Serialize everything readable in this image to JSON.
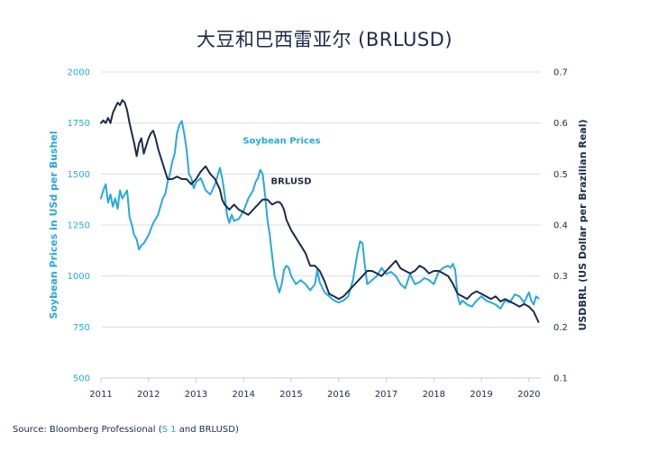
{
  "chart_data": {
    "type": "line",
    "title": "大豆和巴西雷亚尔 (BRLUSD)",
    "left_axis": {
      "label": "Soybean Prices in USd per Bushel",
      "ylim": [
        500,
        2000
      ],
      "ticks": [
        "2000",
        "1750",
        "1500",
        "1250",
        "1000",
        "750",
        "500"
      ],
      "tick_values": [
        2000,
        1750,
        1500,
        1250,
        1000,
        750,
        500
      ]
    },
    "right_axis": {
      "label": "USDBRL (US Dollar per Brazilian Real)",
      "ylim": [
        0.1,
        0.7
      ],
      "ticks": [
        "0.7",
        "0.6",
        "0.5",
        "0.4",
        "0.3",
        "0.2",
        "0.1"
      ],
      "tick_values": [
        0.7,
        0.6,
        0.5,
        0.4,
        0.3,
        0.2,
        0.1
      ]
    },
    "x_axis": {
      "xlim": [
        2011.0,
        2020.25
      ],
      "ticks": [
        "2011",
        "2012",
        "2013",
        "2014",
        "2015",
        "2016",
        "2017",
        "2018",
        "2019",
        "2020"
      ],
      "tick_values": [
        2011,
        2012,
        2013,
        2014,
        2015,
        2016,
        2017,
        2018,
        2019,
        2020
      ]
    },
    "grid": true,
    "series": [
      {
        "name": "Soybean Prices",
        "axis": "left",
        "color": "#2aa7dd",
        "x": [
          2011.0,
          2011.05,
          2011.1,
          2011.15,
          2011.2,
          2011.25,
          2011.3,
          2011.35,
          2011.4,
          2011.45,
          2011.5,
          2011.55,
          2011.6,
          2011.65,
          2011.7,
          2011.75,
          2011.8,
          2011.85,
          2011.9,
          2011.95,
          2012.0,
          2012.1,
          2012.2,
          2012.3,
          2012.35,
          2012.4,
          2012.45,
          2012.5,
          2012.55,
          2012.6,
          2012.65,
          2012.7,
          2012.75,
          2012.8,
          2012.85,
          2012.9,
          2012.95,
          2013.0,
          2013.1,
          2013.2,
          2013.3,
          2013.4,
          2013.5,
          2013.55,
          2013.6,
          2013.65,
          2013.7,
          2013.75,
          2013.8,
          2013.9,
          2014.0,
          2014.1,
          2014.2,
          2014.25,
          2014.3,
          2014.35,
          2014.4,
          2014.45,
          2014.5,
          2014.55,
          2014.6,
          2014.65,
          2014.7,
          2014.75,
          2014.8,
          2014.85,
          2014.9,
          2014.95,
          2015.0,
          2015.1,
          2015.2,
          2015.3,
          2015.4,
          2015.5,
          2015.55,
          2015.6,
          2015.7,
          2015.8,
          2015.9,
          2016.0,
          2016.1,
          2016.2,
          2016.3,
          2016.35,
          2016.4,
          2016.45,
          2016.5,
          2016.55,
          2016.6,
          2016.7,
          2016.8,
          2016.9,
          2017.0,
          2017.1,
          2017.2,
          2017.3,
          2017.4,
          2017.5,
          2017.6,
          2017.7,
          2017.8,
          2017.9,
          2018.0,
          2018.1,
          2018.2,
          2018.3,
          2018.35,
          2018.4,
          2018.45,
          2018.5,
          2018.55,
          2018.6,
          2018.7,
          2018.8,
          2018.9,
          2019.0,
          2019.1,
          2019.2,
          2019.3,
          2019.4,
          2019.5,
          2019.6,
          2019.7,
          2019.8,
          2019.9,
          2020.0,
          2020.05,
          2020.1,
          2020.15,
          2020.2
        ],
        "values": [
          1380,
          1420,
          1450,
          1360,
          1400,
          1340,
          1380,
          1330,
          1420,
          1380,
          1400,
          1420,
          1290,
          1250,
          1200,
          1180,
          1130,
          1150,
          1160,
          1180,
          1200,
          1260,
          1300,
          1380,
          1400,
          1460,
          1500,
          1560,
          1600,
          1700,
          1740,
          1760,
          1700,
          1620,
          1500,
          1480,
          1430,
          1460,
          1480,
          1420,
          1400,
          1450,
          1530,
          1480,
          1400,
          1300,
          1260,
          1300,
          1270,
          1280,
          1320,
          1380,
          1420,
          1460,
          1480,
          1520,
          1500,
          1400,
          1280,
          1200,
          1100,
          1000,
          960,
          920,
          960,
          1030,
          1050,
          1040,
          1000,
          960,
          980,
          960,
          930,
          960,
          1030,
          970,
          920,
          900,
          880,
          870,
          880,
          900,
          980,
          1050,
          1120,
          1170,
          1160,
          1050,
          960,
          980,
          1000,
          1040,
          1010,
          1020,
          1000,
          960,
          940,
          1010,
          960,
          970,
          990,
          980,
          960,
          1020,
          1040,
          1050,
          1040,
          1060,
          1030,
          900,
          860,
          880,
          860,
          850,
          880,
          900,
          880,
          870,
          860,
          840,
          880,
          870,
          910,
          900,
          870,
          920,
          880,
          860,
          900,
          890
        ],
        "label_at": [
          2014.8,
          1650
        ]
      },
      {
        "name": "BRLUSD",
        "axis": "right",
        "color": "#1c2b4a",
        "x": [
          2011.0,
          2011.05,
          2011.1,
          2011.15,
          2011.2,
          2011.25,
          2011.3,
          2011.35,
          2011.4,
          2011.45,
          2011.5,
          2011.55,
          2011.6,
          2011.65,
          2011.7,
          2011.75,
          2011.8,
          2011.85,
          2011.9,
          2011.95,
          2012.0,
          2012.05,
          2012.1,
          2012.15,
          2012.2,
          2012.3,
          2012.4,
          2012.5,
          2012.6,
          2012.7,
          2012.8,
          2012.9,
          2013.0,
          2013.1,
          2013.2,
          2013.3,
          2013.4,
          2013.5,
          2013.55,
          2013.6,
          2013.7,
          2013.8,
          2013.9,
          2014.0,
          2014.1,
          2014.2,
          2014.3,
          2014.4,
          2014.5,
          2014.6,
          2014.7,
          2014.75,
          2014.8,
          2014.85,
          2014.9,
          2014.95,
          2015.0,
          2015.1,
          2015.2,
          2015.3,
          2015.4,
          2015.5,
          2015.6,
          2015.7,
          2015.8,
          2015.9,
          2016.0,
          2016.1,
          2016.2,
          2016.3,
          2016.4,
          2016.5,
          2016.6,
          2016.7,
          2016.8,
          2016.9,
          2017.0,
          2017.1,
          2017.2,
          2017.3,
          2017.4,
          2017.5,
          2017.6,
          2017.7,
          2017.8,
          2017.9,
          2018.0,
          2018.1,
          2018.2,
          2018.3,
          2018.4,
          2018.5,
          2018.6,
          2018.7,
          2018.8,
          2018.9,
          2019.0,
          2019.1,
          2019.2,
          2019.3,
          2019.4,
          2019.5,
          2019.6,
          2019.7,
          2019.8,
          2019.9,
          2020.0,
          2020.05,
          2020.1,
          2020.15,
          2020.2
        ],
        "values": [
          0.6,
          0.605,
          0.6,
          0.61,
          0.6,
          0.62,
          0.63,
          0.64,
          0.635,
          0.645,
          0.64,
          0.625,
          0.6,
          0.58,
          0.56,
          0.535,
          0.56,
          0.57,
          0.54,
          0.555,
          0.57,
          0.58,
          0.585,
          0.57,
          0.55,
          0.52,
          0.49,
          0.49,
          0.495,
          0.49,
          0.49,
          0.48,
          0.49,
          0.505,
          0.515,
          0.5,
          0.49,
          0.47,
          0.45,
          0.44,
          0.43,
          0.44,
          0.43,
          0.425,
          0.42,
          0.43,
          0.44,
          0.45,
          0.45,
          0.44,
          0.445,
          0.445,
          0.44,
          0.43,
          0.41,
          0.4,
          0.39,
          0.375,
          0.36,
          0.345,
          0.32,
          0.32,
          0.31,
          0.29,
          0.265,
          0.26,
          0.255,
          0.26,
          0.27,
          0.28,
          0.29,
          0.3,
          0.31,
          0.31,
          0.305,
          0.3,
          0.31,
          0.32,
          0.33,
          0.315,
          0.31,
          0.305,
          0.31,
          0.32,
          0.315,
          0.305,
          0.31,
          0.31,
          0.305,
          0.3,
          0.285,
          0.265,
          0.26,
          0.255,
          0.265,
          0.27,
          0.265,
          0.26,
          0.255,
          0.26,
          0.25,
          0.255,
          0.25,
          0.245,
          0.24,
          0.245,
          0.24,
          0.235,
          0.23,
          0.22,
          0.21
        ],
        "label_at": [
          2015.0,
          0.48
        ]
      }
    ]
  },
  "source": {
    "prefix": "Source: Bloomberg Professional (",
    "link": "S 1",
    "suffix": " and BRLUSD)"
  }
}
